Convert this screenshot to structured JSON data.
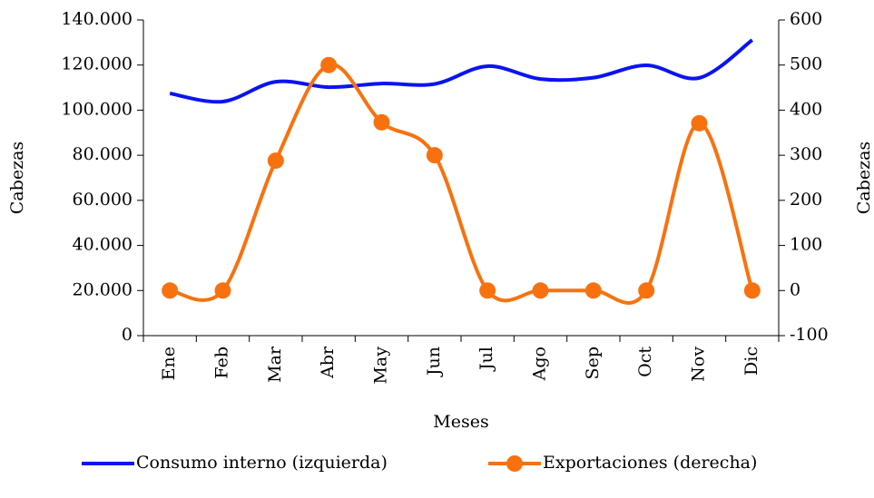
{
  "chart_data": {
    "type": "line",
    "categories": [
      "Ene",
      "Feb",
      "Mar",
      "Abr",
      "May",
      "Jun",
      "Jul",
      "Ago",
      "Sep",
      "Oct",
      "Nov",
      "Dic"
    ],
    "x_label": "Meses",
    "y_label": "Cabezas",
    "y2_label": "Cabezas",
    "series": [
      {
        "name": "Consumo interno (izquierda)",
        "color": "#0a14f0",
        "values": [
          107400,
          103800,
          112600,
          110200,
          111800,
          111600,
          119500,
          113800,
          114400,
          119900,
          114300,
          131100
        ]
      },
      {
        "name": "Exportaciones (derecha)",
        "color": "#f7720f",
        "axis": "y2",
        "values": [
          0,
          0,
          288,
          500,
          373,
          300,
          0,
          0,
          0,
          0,
          371,
          0
        ]
      }
    ],
    "ylim": [
      0,
      140000
    ],
    "yticks": [
      0,
      {
        "value": 20000,
        "label": "20.000"
      },
      {
        "value": 40000,
        "label": "40.000"
      },
      {
        "value": 60000,
        "label": "60.000"
      },
      {
        "value": 80000,
        "label": "80.000"
      },
      {
        "value": 100000,
        "label": "100.000"
      },
      {
        "value": 120000,
        "label": "120.000"
      },
      {
        "value": 140000,
        "label": "140.000"
      }
    ],
    "y2lim": [
      -100,
      600
    ],
    "y2ticks": [
      -100,
      0,
      100,
      200,
      300,
      400,
      500,
      600
    ],
    "smooth": true,
    "legend": "bottom"
  }
}
